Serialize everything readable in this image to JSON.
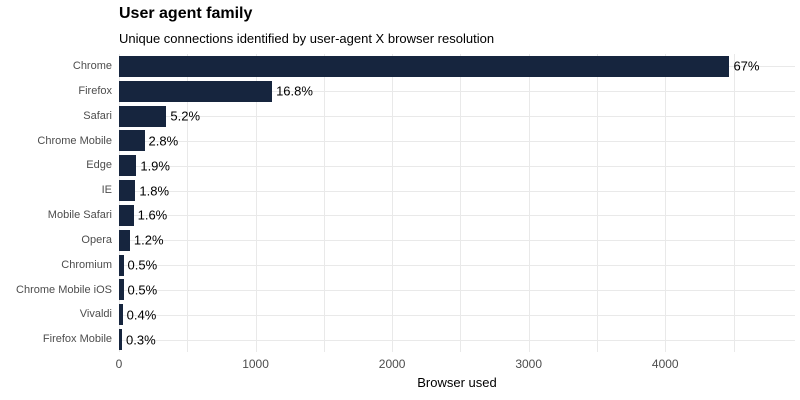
{
  "chart_data": {
    "type": "bar",
    "orientation": "horizontal",
    "title": "User agent family",
    "subtitle": "Unique connections identified by user-agent X browser resolution",
    "xlabel": "Browser used",
    "ylabel": "",
    "categories": [
      "Chrome",
      "Firefox",
      "Safari",
      "Chrome Mobile",
      "Edge",
      "IE",
      "Mobile Safari",
      "Opera",
      "Chromium",
      "Chrome Mobile iOS",
      "Vivaldi",
      "Firefox Mobile"
    ],
    "values": [
      4470,
      1121,
      347,
      187,
      127,
      120,
      107,
      80,
      33,
      33,
      27,
      20
    ],
    "value_labels": [
      "67%",
      "16.8%",
      "5.2%",
      "2.8%",
      "1.9%",
      "1.8%",
      "1.6%",
      "1.2%",
      "0.5%",
      "0.5%",
      "0.4%",
      "0.3%"
    ],
    "xlim": [
      0,
      4950
    ],
    "x_major_ticks": [
      0,
      1000,
      2000,
      3000,
      4000
    ],
    "x_minor_step": 500,
    "grid": "on",
    "legend_position": "none",
    "colors": {
      "bar": "#16253e",
      "grid": "#e9e9e9",
      "axis_text": "#4d4d4d",
      "value_text": "#000000",
      "background": "#ffffff"
    }
  }
}
